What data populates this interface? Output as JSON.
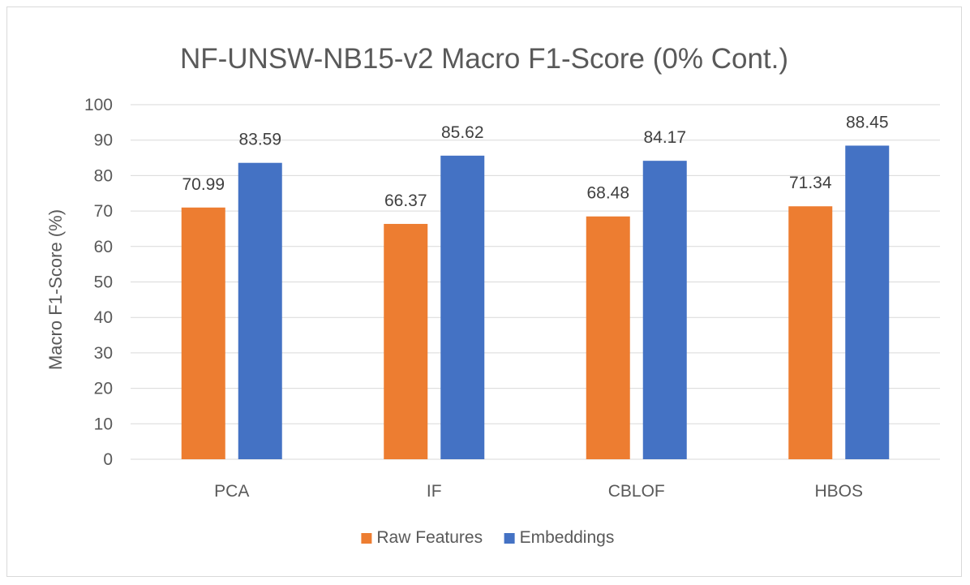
{
  "chart_data": {
    "type": "bar",
    "title": "NF-UNSW-NB15-v2 Macro F1-Score (0% Cont.)",
    "xlabel": "",
    "ylabel": "Macro F1-Score (%)",
    "ylim": [
      0,
      100
    ],
    "yticks": [
      "0",
      "10",
      "20",
      "30",
      "40",
      "50",
      "60",
      "70",
      "80",
      "90",
      "100"
    ],
    "grid": true,
    "legend_position": "bottom",
    "categories": [
      "PCA",
      "IF",
      "CBLOF",
      "HBOS"
    ],
    "series": [
      {
        "name": "Raw Features",
        "color": "#ed7d31",
        "values": [
          70.99,
          66.37,
          68.48,
          71.34
        ],
        "labels": [
          "70.99",
          "66.37",
          "68.48",
          "71.34"
        ]
      },
      {
        "name": "Embeddings",
        "color": "#4472c4",
        "values": [
          83.59,
          85.62,
          84.17,
          88.45
        ],
        "labels": [
          "83.59",
          "85.62",
          "84.17",
          "88.45"
        ]
      }
    ]
  }
}
